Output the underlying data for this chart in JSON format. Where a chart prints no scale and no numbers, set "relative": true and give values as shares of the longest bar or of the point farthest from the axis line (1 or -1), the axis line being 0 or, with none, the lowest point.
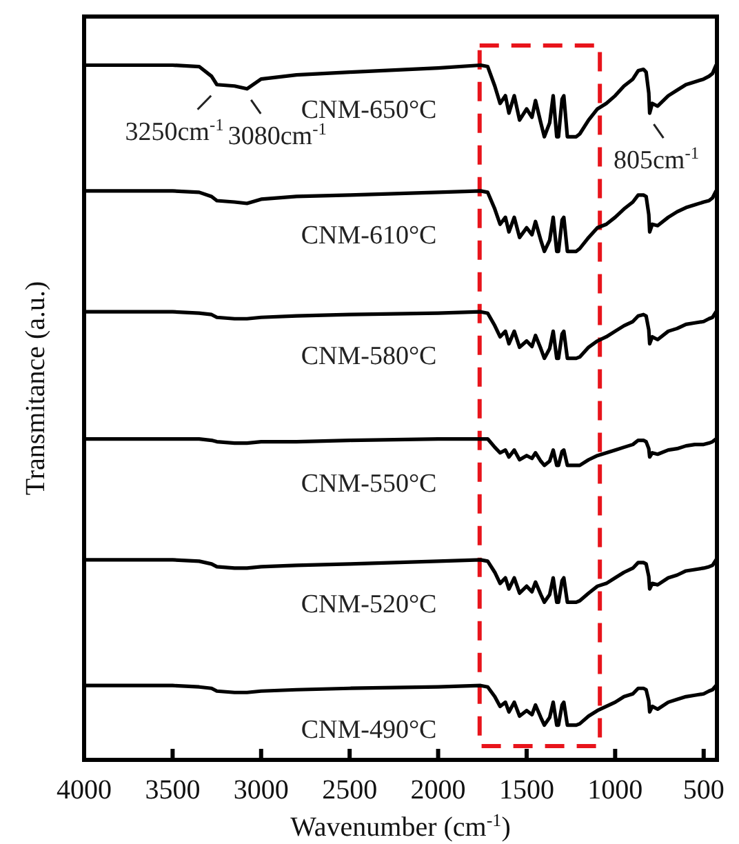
{
  "chart_data": {
    "type": "line",
    "relative": true,
    "xlabel": "Wavenumber (cm$^{-1}$)",
    "ylabel": "Transmitance (a.u.)",
    "xlim": [
      4000,
      425
    ],
    "xticks": [
      4000,
      3500,
      3000,
      2500,
      2000,
      1500,
      1000,
      500
    ],
    "line_style": "solid",
    "x": [
      4000,
      3500,
      3350,
      3280,
      3250,
      3150,
      3080,
      3000,
      2800,
      2500,
      2000,
      1760,
      1720,
      1680,
      1650,
      1620,
      1600,
      1570,
      1540,
      1500,
      1470,
      1450,
      1420,
      1400,
      1370,
      1350,
      1330,
      1320,
      1300,
      1290,
      1270,
      1250,
      1220,
      1200,
      1150,
      1100,
      1050,
      1000,
      950,
      900,
      870,
      840,
      825,
      810,
      805,
      790,
      760,
      700,
      650,
      600,
      550,
      500,
      470,
      450,
      430
    ],
    "series": [
      {
        "name": "CNM-650°C",
        "color": "#000000",
        "values": [
          1.0,
          1.0,
          0.998,
          0.984,
          0.972,
          0.97,
          0.966,
          0.98,
          0.986,
          0.99,
          0.996,
          1.0,
          0.998,
          0.97,
          0.945,
          0.956,
          0.931,
          0.956,
          0.921,
          0.937,
          0.925,
          0.949,
          0.917,
          0.897,
          0.917,
          0.956,
          0.897,
          0.897,
          0.951,
          0.956,
          0.897,
          0.897,
          0.897,
          0.901,
          0.921,
          0.937,
          0.945,
          0.956,
          0.97,
          0.98,
          0.992,
          0.994,
          0.99,
          0.96,
          0.931,
          0.945,
          0.941,
          0.956,
          0.964,
          0.972,
          0.976,
          0.98,
          0.984,
          0.988,
          1.0
        ]
      },
      {
        "name": "CNM-610°C",
        "color": "#000000",
        "values": [
          0.819,
          0.819,
          0.817,
          0.811,
          0.805,
          0.803,
          0.801,
          0.807,
          0.811,
          0.813,
          0.817,
          0.819,
          0.817,
          0.793,
          0.771,
          0.781,
          0.76,
          0.781,
          0.752,
          0.766,
          0.756,
          0.775,
          0.748,
          0.732,
          0.748,
          0.781,
          0.732,
          0.732,
          0.777,
          0.781,
          0.732,
          0.732,
          0.732,
          0.736,
          0.752,
          0.766,
          0.771,
          0.781,
          0.793,
          0.803,
          0.813,
          0.813,
          0.811,
          0.785,
          0.76,
          0.771,
          0.769,
          0.781,
          0.789,
          0.795,
          0.799,
          0.803,
          0.805,
          0.809,
          0.819
        ]
      },
      {
        "name": "CNM-580°C",
        "color": "#000000",
        "values": [
          0.645,
          0.645,
          0.643,
          0.641,
          0.637,
          0.635,
          0.635,
          0.637,
          0.639,
          0.641,
          0.643,
          0.645,
          0.643,
          0.625,
          0.609,
          0.617,
          0.599,
          0.617,
          0.594,
          0.603,
          0.595,
          0.611,
          0.592,
          0.578,
          0.592,
          0.617,
          0.578,
          0.578,
          0.613,
          0.617,
          0.578,
          0.578,
          0.578,
          0.58,
          0.594,
          0.603,
          0.609,
          0.617,
          0.625,
          0.631,
          0.639,
          0.641,
          0.639,
          0.619,
          0.599,
          0.609,
          0.605,
          0.617,
          0.621,
          0.627,
          0.629,
          0.631,
          0.635,
          0.637,
          0.645
        ]
      },
      {
        "name": "CNM-550°C",
        "color": "#000000",
        "values": [
          0.462,
          0.462,
          0.462,
          0.46,
          0.458,
          0.456,
          0.456,
          0.458,
          0.458,
          0.46,
          0.462,
          0.462,
          0.462,
          0.45,
          0.442,
          0.446,
          0.436,
          0.446,
          0.432,
          0.438,
          0.434,
          0.442,
          0.43,
          0.424,
          0.43,
          0.446,
          0.424,
          0.424,
          0.444,
          0.446,
          0.424,
          0.424,
          0.424,
          0.424,
          0.432,
          0.438,
          0.442,
          0.446,
          0.45,
          0.454,
          0.46,
          0.46,
          0.458,
          0.448,
          0.436,
          0.442,
          0.44,
          0.446,
          0.448,
          0.452,
          0.454,
          0.454,
          0.456,
          0.458,
          0.462
        ]
      },
      {
        "name": "CNM-520°C",
        "color": "#000000",
        "values": [
          0.288,
          0.288,
          0.286,
          0.282,
          0.278,
          0.276,
          0.276,
          0.278,
          0.28,
          0.282,
          0.286,
          0.288,
          0.286,
          0.27,
          0.254,
          0.262,
          0.246,
          0.262,
          0.24,
          0.25,
          0.242,
          0.256,
          0.238,
          0.227,
          0.238,
          0.262,
          0.227,
          0.227,
          0.258,
          0.262,
          0.227,
          0.227,
          0.227,
          0.229,
          0.24,
          0.25,
          0.254,
          0.262,
          0.27,
          0.276,
          0.284,
          0.284,
          0.282,
          0.264,
          0.246,
          0.254,
          0.252,
          0.262,
          0.266,
          0.272,
          0.274,
          0.276,
          0.278,
          0.28,
          0.288
        ]
      },
      {
        "name": "CNM-490°C",
        "color": "#000000",
        "values": [
          0.107,
          0.107,
          0.105,
          0.103,
          0.099,
          0.097,
          0.097,
          0.099,
          0.101,
          0.103,
          0.105,
          0.107,
          0.105,
          0.091,
          0.077,
          0.083,
          0.069,
          0.083,
          0.063,
          0.071,
          0.065,
          0.079,
          0.061,
          0.05,
          0.061,
          0.083,
          0.05,
          0.05,
          0.079,
          0.083,
          0.05,
          0.05,
          0.05,
          0.052,
          0.063,
          0.071,
          0.077,
          0.083,
          0.091,
          0.095,
          0.103,
          0.103,
          0.101,
          0.085,
          0.069,
          0.077,
          0.073,
          0.083,
          0.087,
          0.091,
          0.093,
          0.095,
          0.099,
          0.101,
          0.107
        ]
      }
    ],
    "annotations": [
      {
        "text": "3250cm$^{-1}$",
        "x": 3250,
        "y": 0.972
      },
      {
        "text": "3080cm$^{-1}$",
        "x": 3080,
        "y": 0.966
      },
      {
        "text": "805cm$^{-1}$",
        "x": 805,
        "y": 0.931
      }
    ]
  }
}
